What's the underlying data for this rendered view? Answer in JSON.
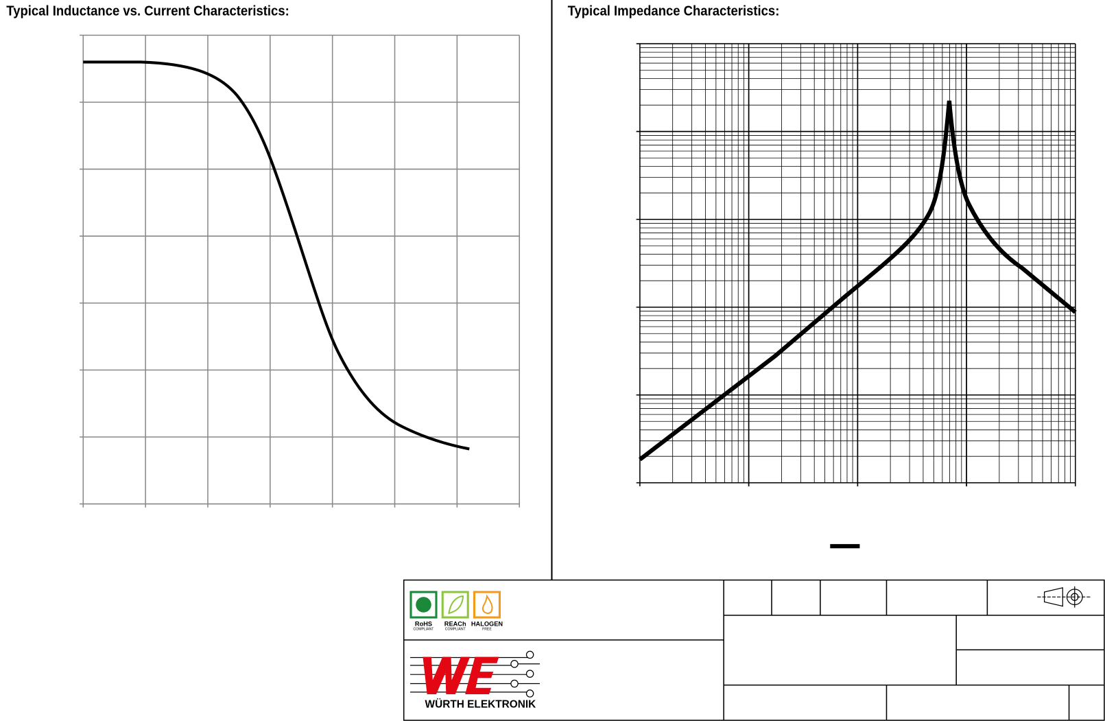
{
  "left_chart": {
    "title": "Typical Inductance vs. Current Characteristics:"
  },
  "right_chart": {
    "title": "Typical Impedance Characteristics:"
  },
  "badges": [
    {
      "name": "RoHS",
      "note": "COMPLIANT"
    },
    {
      "name": "REACh",
      "note": "COMPLIANT"
    },
    {
      "name": "HALOGEN",
      "note": "FREE"
    }
  ],
  "logo": {
    "brand": "WÜRTH ELEKTRONIK"
  }
}
